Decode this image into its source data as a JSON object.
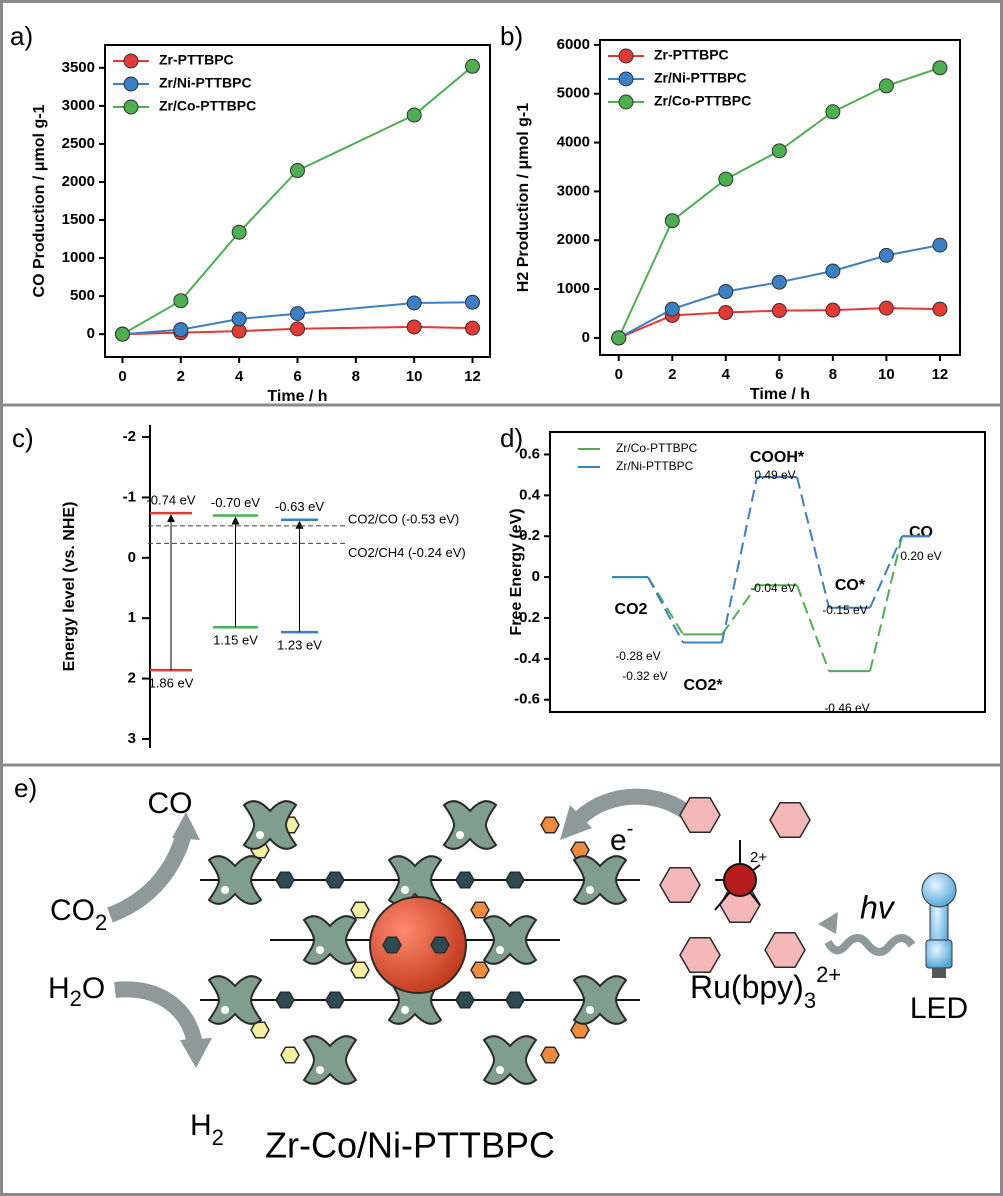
{
  "chart_data": [
    {
      "type": "line",
      "panel_label": "a)",
      "xlabel": "Time / h",
      "ylabel": "CO Production / μmol g-1",
      "x": [
        0,
        2,
        4,
        6,
        10,
        12
      ],
      "series": [
        {
          "name": "Zr-PTTBPC",
          "color": "#e53935",
          "values": [
            0,
            20,
            40,
            70,
            95,
            80
          ]
        },
        {
          "name": "Zr/Ni-PTTBPC",
          "color": "#3b7fc4",
          "values": [
            0,
            60,
            200,
            270,
            410,
            420
          ]
        },
        {
          "name": "Zr/Co-PTTBPC",
          "color": "#4caf50",
          "values": [
            0,
            440,
            1340,
            2150,
            2880,
            3520
          ]
        }
      ],
      "xlim": [
        -0.6,
        12.6
      ],
      "xticks": [
        0,
        2,
        4,
        6,
        8,
        10,
        12
      ],
      "ylim": [
        -300,
        3800
      ],
      "yticks": [
        0,
        500,
        1000,
        1500,
        2000,
        2500,
        3000,
        3500
      ],
      "legend": "upper left"
    },
    {
      "type": "line",
      "panel_label": "b)",
      "xlabel": "Time / h",
      "ylabel": "H2 Production / μmol g-1",
      "x": [
        0,
        2,
        4,
        6,
        8,
        10,
        12
      ],
      "series": [
        {
          "name": "Zr-PTTBPC",
          "color": "#e53935",
          "values": [
            0,
            460,
            520,
            560,
            570,
            610,
            590
          ]
        },
        {
          "name": "Zr/Ni-PTTBPC",
          "color": "#3b7fc4",
          "values": [
            0,
            590,
            950,
            1140,
            1370,
            1690,
            1900
          ]
        },
        {
          "name": "Zr/Co-PTTBPC",
          "color": "#4caf50",
          "values": [
            0,
            2400,
            3250,
            3830,
            4630,
            5160,
            5530
          ]
        }
      ],
      "xlim": [
        -0.7,
        12.75
      ],
      "xticks": [
        0,
        2,
        4,
        6,
        8,
        10,
        12
      ],
      "ylim": [
        -350,
        6100
      ],
      "yticks": [
        0,
        1000,
        2000,
        3000,
        4000,
        5000,
        6000
      ],
      "legend": "upper left"
    },
    {
      "type": "energy_levels",
      "panel_label": "c)",
      "ylabel": "Energy level (vs. NHE)",
      "ylim": [
        -2.2,
        3.15
      ],
      "yticks": [
        -2,
        -1,
        0,
        1,
        2,
        3
      ],
      "inverted": true,
      "levels": [
        {
          "color": "#e53935",
          "cb": -0.74,
          "vb": 1.86,
          "cb_label": "-0.74 eV",
          "vb_label": "1.86 eV"
        },
        {
          "color": "#4caf50",
          "cb": -0.7,
          "vb": 1.15,
          "cb_label": "-0.70 eV",
          "vb_label": "1.15 eV"
        },
        {
          "color": "#3b7fc4",
          "cb": -0.63,
          "vb": 1.23,
          "cb_label": "-0.63 eV",
          "vb_label": "1.23 eV"
        }
      ],
      "references": [
        {
          "label": "CO2/CO (-0.53 eV)",
          "value": -0.53
        },
        {
          "label": "CO2/CH4 (-0.24 eV)",
          "value": -0.24
        }
      ]
    },
    {
      "type": "free_energy",
      "panel_label": "d)",
      "ylabel": "Free Energy (eV)",
      "categories": [
        "CO2",
        "CO2*",
        "COOH*",
        "CO*",
        "CO"
      ],
      "series": [
        {
          "name": "Zr/Co-PTTBPC",
          "color": "#4caf50",
          "values": [
            0,
            -0.28,
            -0.04,
            -0.46,
            0.2
          ],
          "value_labels": [
            null,
            "-0.28 eV",
            "-0.04 eV",
            "-0.46 eV",
            null
          ]
        },
        {
          "name": "Zr/Ni-PTTBPC",
          "color": "#3b7fc4",
          "values": [
            0,
            -0.32,
            0.49,
            -0.15,
            0.2
          ],
          "value_labels": [
            null,
            "-0.32 eV",
            "0.49 eV",
            "-0.15 eV",
            "0.20 eV"
          ]
        }
      ],
      "ylim": [
        -0.66,
        0.71
      ],
      "yticks": [
        -0.6,
        -0.4,
        -0.2,
        0.0,
        0.2,
        0.4,
        0.6
      ],
      "legend": "upper left"
    }
  ],
  "illustration": {
    "panel_label": "e)",
    "co": "CO",
    "co2": {
      "main": "CO",
      "sub": "2"
    },
    "h2o": {
      "main": "H",
      "sub": "2",
      "rest": "O"
    },
    "h2": {
      "main": "H",
      "sub": "2"
    },
    "framework": "Zr-Co/Ni-PTTBPC",
    "electron": {
      "main": "e",
      "sup": "-"
    },
    "charge": "2+",
    "ru": {
      "main": "Ru(bpy)",
      "sub": "3",
      "sup": "2+"
    },
    "light": "hv",
    "led": "LED"
  }
}
